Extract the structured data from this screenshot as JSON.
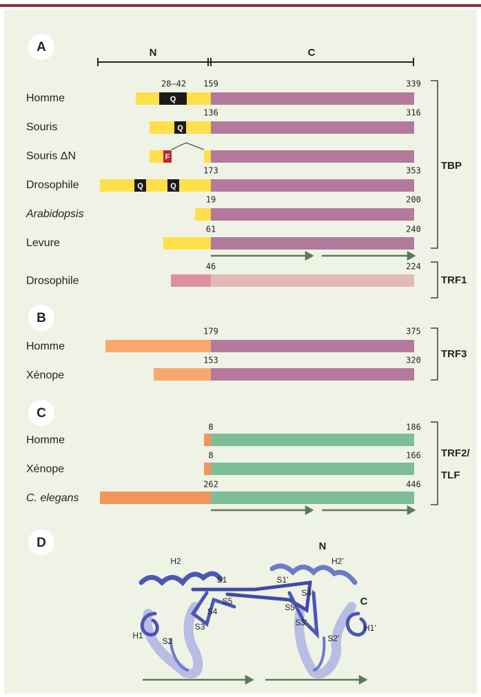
{
  "panel_a": {
    "label": "A",
    "domain_n": "N",
    "domain_c": "C",
    "rows": [
      {
        "name": "Homme",
        "start": 159,
        "end": 339,
        "repeat": "28–42",
        "q": [
          "Q"
        ]
      },
      {
        "name": "Souris",
        "start": 136,
        "end": 316,
        "q": [
          "Q"
        ]
      },
      {
        "name": "Souris ΔN",
        "mutation": "F"
      },
      {
        "name": "Drosophile",
        "start": 173,
        "end": 353,
        "q": [
          "Q",
          "Q"
        ]
      },
      {
        "name": "Arabidopsis",
        "start": 19,
        "end": 200
      },
      {
        "name": "Levure",
        "start": 61,
        "end": 240
      },
      {
        "name": "Drosophile",
        "start": 46,
        "end": 224
      }
    ],
    "groups": [
      "TBP",
      "TRF1"
    ]
  },
  "panel_b": {
    "label": "B",
    "rows": [
      {
        "name": "Homme",
        "start": 179,
        "end": 375
      },
      {
        "name": "Xénope",
        "start": 153,
        "end": 320
      }
    ],
    "group": "TRF3"
  },
  "panel_c": {
    "label": "C",
    "rows": [
      {
        "name": "Homme",
        "start": 8,
        "end": 186
      },
      {
        "name": "Xénope",
        "start": 8,
        "end": 166
      },
      {
        "name": "C. elegans",
        "start": 262,
        "end": 446
      }
    ],
    "group": [
      "TRF2/",
      "TLF"
    ]
  },
  "panel_d": {
    "label": "D",
    "annotations": [
      "N",
      "H2",
      "H2’",
      "S1",
      "S1’",
      "S5",
      "S4’",
      "C",
      "S4",
      "S5’",
      "S3",
      "S3’",
      "H1",
      "S2",
      "S2’",
      "H1’"
    ]
  }
}
